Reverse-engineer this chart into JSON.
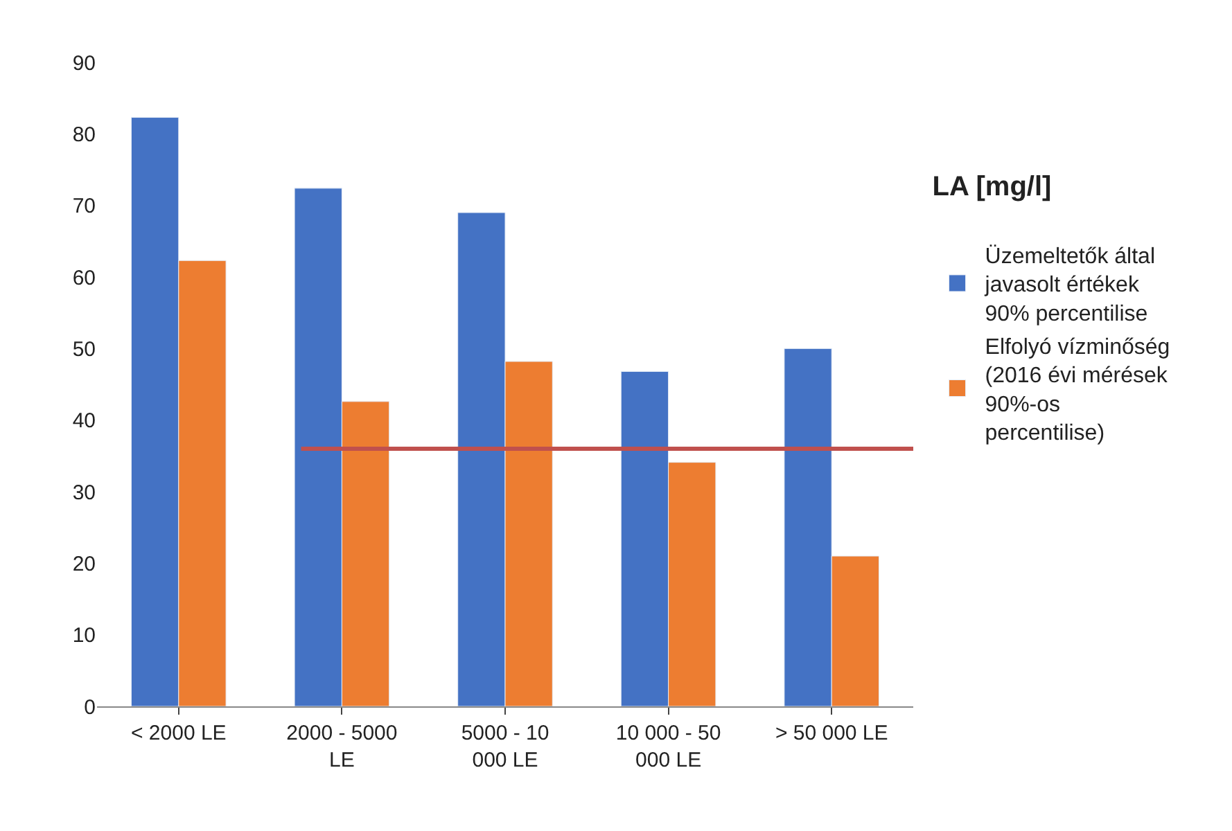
{
  "chart_data": {
    "type": "bar",
    "legend_title": "LA [mg/l]",
    "categories": [
      "< 2000 LE",
      "2000 - 5000 LE",
      "5000 - 10 000 LE",
      "10 000 - 50 000 LE",
      "> 50 000 LE"
    ],
    "series": [
      {
        "name": "Üzemeltetők által javasolt értékek 90% percentilise",
        "color": "#4472c4",
        "values": [
          82.3,
          72.4,
          69.0,
          46.8,
          50.0
        ]
      },
      {
        "name": "Elfolyó vízminőség (2016 évi mérések 90%-os percentilise)",
        "color": "#ed7d31",
        "values": [
          62.3,
          42.6,
          48.2,
          34.1,
          21.0
        ]
      }
    ],
    "ylim": [
      0,
      90
    ],
    "yticks": [
      0,
      10,
      20,
      30,
      40,
      50,
      60,
      70,
      80,
      90
    ],
    "ref_lines": [
      {
        "axis": "y",
        "value": 36,
        "color": "#c0504d"
      }
    ],
    "legend": "right"
  }
}
